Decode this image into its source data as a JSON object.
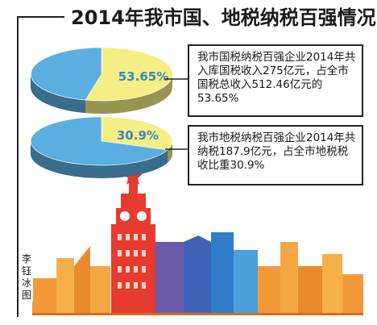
{
  "title": "2014年我市国、地税纳税百强情况",
  "credit": "李钰冰 图",
  "chart_data": [
    {
      "type": "pie",
      "values": [
        53.65,
        46.35
      ],
      "value_label": "53.65%",
      "colors": [
        "#f5ee85",
        "#5aafe0"
      ],
      "annotation": "我市国税纳税百强企业2014年共入库国税收入275亿元，占全市国税总收入512.46亿元的53.65%"
    },
    {
      "type": "pie",
      "values": [
        30.9,
        69.1
      ],
      "value_label": "30.9%",
      "colors": [
        "#f5ee85",
        "#5aafe0"
      ],
      "annotation": "我市地税纳税百强企业2014年共纳税187.9亿元，占全市地税税收比重30.9%"
    }
  ]
}
